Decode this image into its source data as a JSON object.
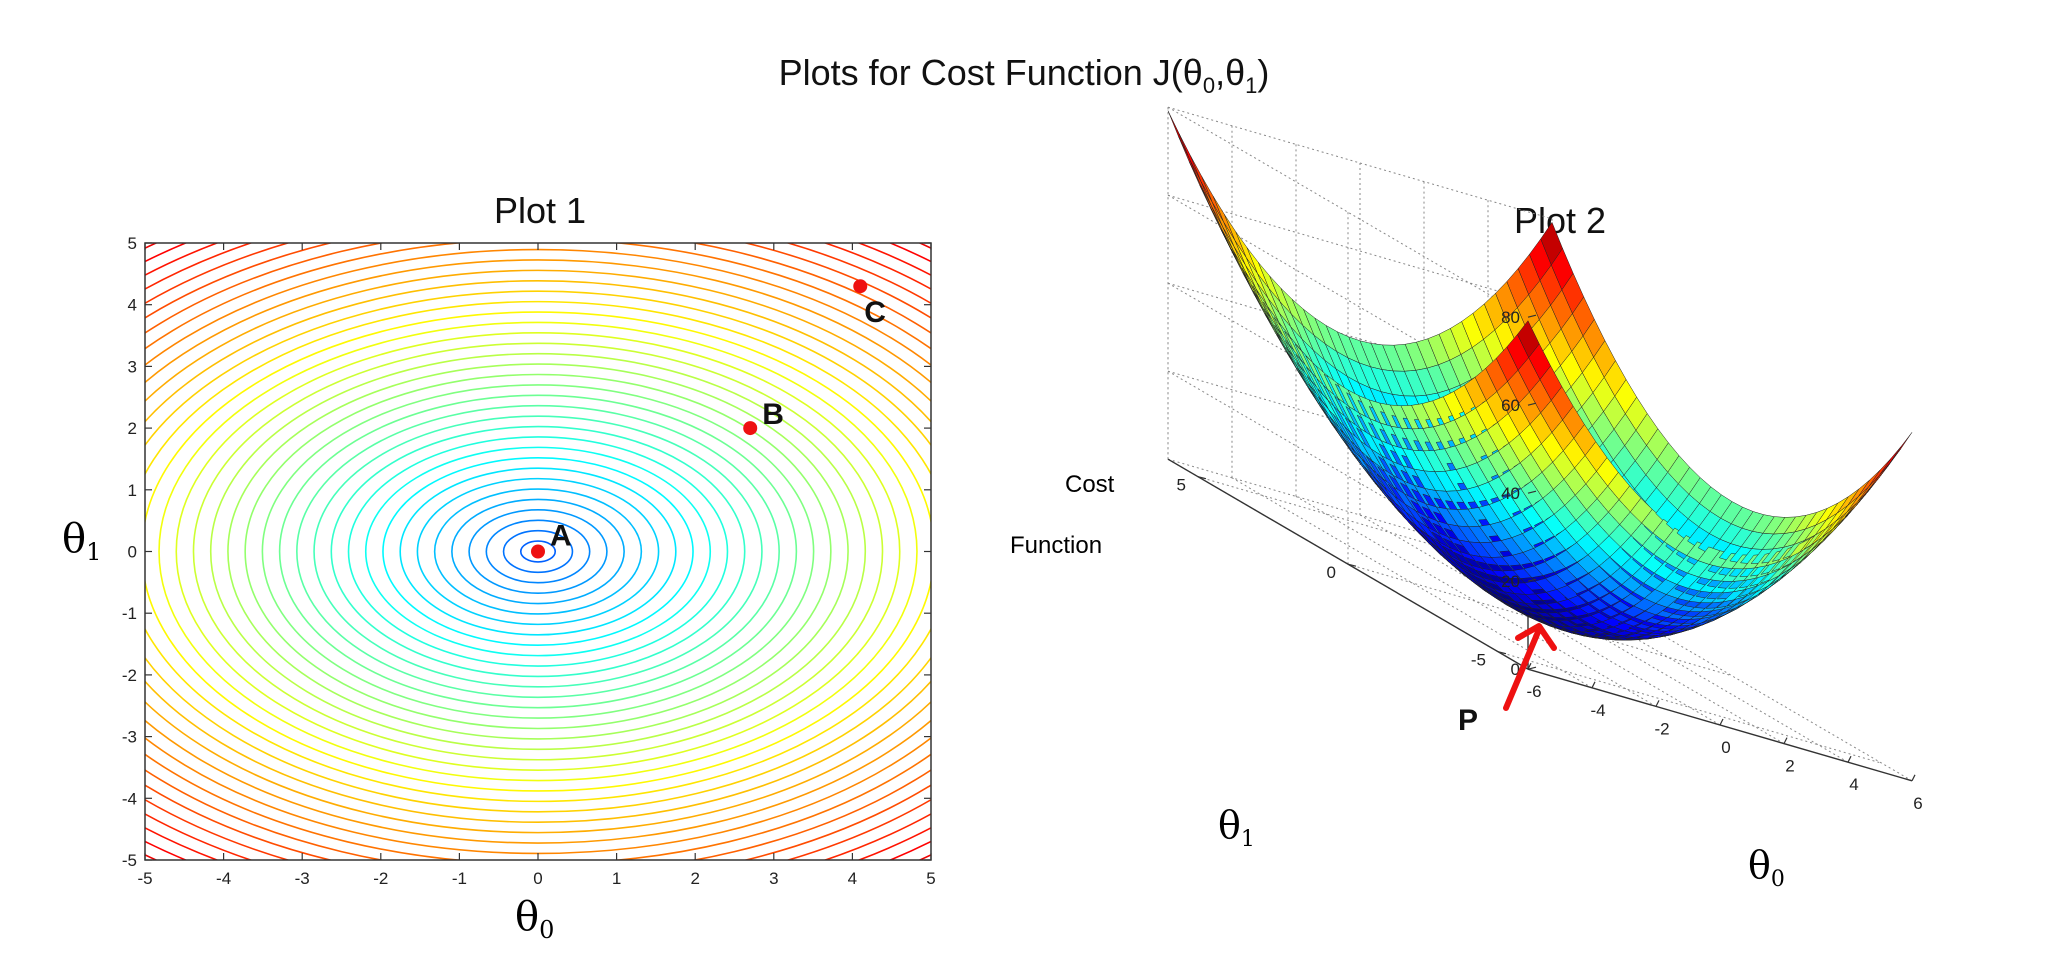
{
  "title": {
    "text": "Plots for Cost Function J(θ",
    "sub0": "0",
    "sep": ",θ",
    "sub1": "1",
    "close": ")"
  },
  "chart_data": [
    {
      "type": "contour",
      "title": "Plot 1",
      "xlabel": "θ",
      "xlabel_sub": "0",
      "ylabel": "θ",
      "ylabel_sub": "1",
      "xlim": [
        -5,
        5
      ],
      "ylim": [
        -5,
        5
      ],
      "x_ticks": [
        "-5",
        "-4",
        "-3",
        "-2",
        "-1",
        "0",
        "1",
        "2",
        "3",
        "4",
        "5"
      ],
      "y_ticks": [
        "5",
        "4",
        "3",
        "2",
        "1",
        "0",
        "-1",
        "-2",
        "-3",
        "-4",
        "-5"
      ],
      "contour": {
        "center": [
          0,
          0
        ],
        "levels": 40,
        "colormap": "jet"
      },
      "points": [
        {
          "label": "A",
          "x": 0.0,
          "y": 0.0
        },
        {
          "label": "B",
          "x": 2.7,
          "y": 2.0
        },
        {
          "label": "C",
          "x": 4.1,
          "y": 4.3
        }
      ],
      "point_color": "#ee1111"
    },
    {
      "type": "surface",
      "title": "Plot 2",
      "zlabel": [
        "Cost",
        "Function"
      ],
      "xlabel": "θ",
      "xlabel_sub": "0",
      "ylabel": "θ",
      "ylabel_sub": "1",
      "z_ticks": [
        "80",
        "60",
        "40",
        "20",
        "0"
      ],
      "x_ticks": [
        "-6",
        "-4",
        "-2",
        "0",
        "2",
        "4",
        "6"
      ],
      "y_ticks": [
        "5",
        "0",
        "-5"
      ],
      "xlim": [
        -6,
        6
      ],
      "ylim": [
        -6,
        6
      ],
      "zlim": [
        0,
        80
      ],
      "colormap": "jet",
      "annotation": {
        "label": "P",
        "arrow_color": "#ee1111"
      }
    }
  ]
}
